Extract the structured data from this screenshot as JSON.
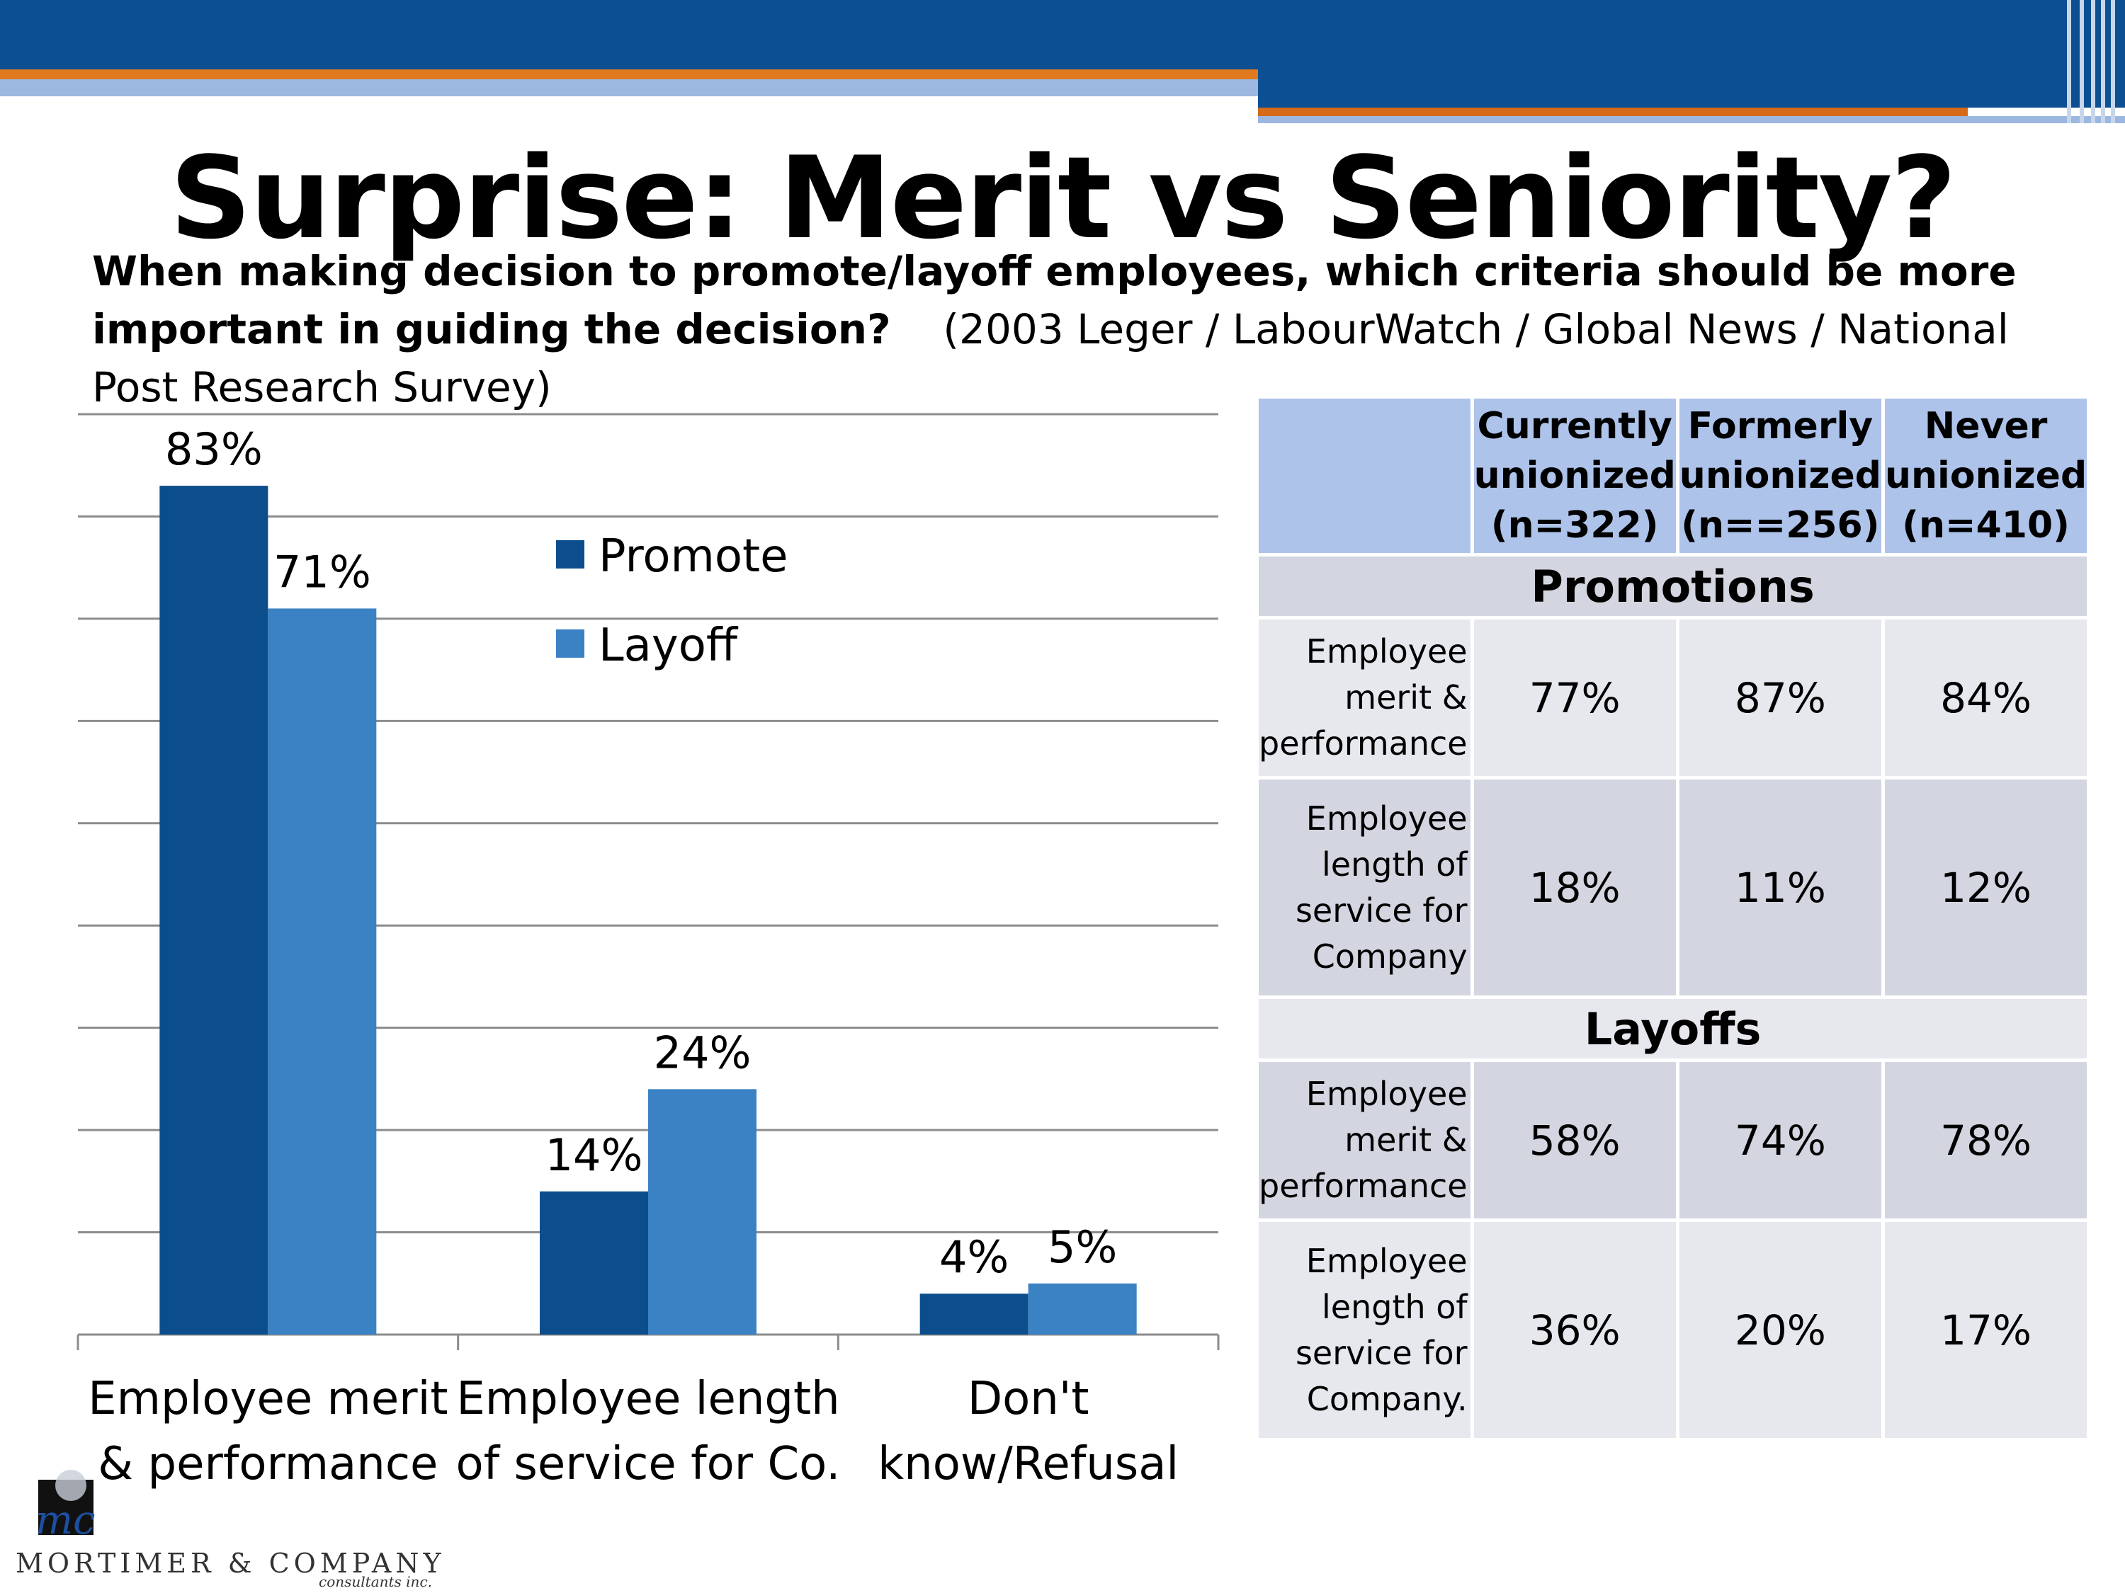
{
  "title": "Surprise:  Merit vs Seniority?",
  "subtitle": {
    "question": "When making decision to promote/layoff employees, which criteria should be more important in guiding the decision?",
    "source": "(2003 Leger / LabourWatch / Global News / National Post Research Survey)"
  },
  "colors": {
    "banner": "#0c5093",
    "accent": "#e07a1f",
    "promote": "#0c4e8c",
    "layoff": "#3b82c4"
  },
  "chart_data": {
    "type": "bar",
    "categories": [
      [
        "Employee merit",
        "& performance"
      ],
      [
        "Employee length",
        "of service for Co."
      ],
      [
        "Don't",
        "know/Refusal"
      ]
    ],
    "series": [
      {
        "name": "Promote",
        "values": [
          83,
          14,
          4
        ],
        "labels": [
          "83%",
          "14%",
          "4%"
        ],
        "color": "#0c4e8c"
      },
      {
        "name": "Layoff",
        "values": [
          71,
          24,
          5
        ],
        "labels": [
          "71%",
          "24%",
          "5%"
        ],
        "color": "#3b82c4"
      }
    ],
    "ylim": [
      0,
      90
    ],
    "gridlines": [
      0,
      10,
      20,
      30,
      40,
      50,
      60,
      70,
      80,
      90
    ],
    "legend": "upper-middle",
    "grid": true
  },
  "table": {
    "headers": [
      "Currently unionized (n=322)",
      "Formerly unionized (n==256)",
      "Never unionized (n=410)"
    ],
    "header_lines": [
      [
        "Currently",
        "unionized",
        "(n=322)"
      ],
      [
        "Formerly",
        "unionized",
        "(n==256)"
      ],
      [
        "Never",
        "unionized",
        "(n=410)"
      ]
    ],
    "sections": [
      {
        "name": "Promotions",
        "rows": [
          {
            "label_lines": [
              "Employee",
              "merit &",
              "performance"
            ],
            "values": [
              "77%",
              "87%",
              "84%"
            ]
          },
          {
            "label_lines": [
              "Employee",
              "length of",
              "service for",
              "Company"
            ],
            "values": [
              "18%",
              "11%",
              "12%"
            ]
          }
        ]
      },
      {
        "name": "Layoffs",
        "rows": [
          {
            "label_lines": [
              "Employee",
              "merit &",
              "performance"
            ],
            "values": [
              "58%",
              "74%",
              "78%"
            ]
          },
          {
            "label_lines": [
              "Employee",
              "length of",
              "service for",
              "Company."
            ],
            "values": [
              "36%",
              "20%",
              "17%"
            ]
          }
        ]
      }
    ]
  },
  "logo": {
    "name": "MORTIMER & COMPANY",
    "tagline": "consultants inc.",
    "mark": "mc"
  }
}
